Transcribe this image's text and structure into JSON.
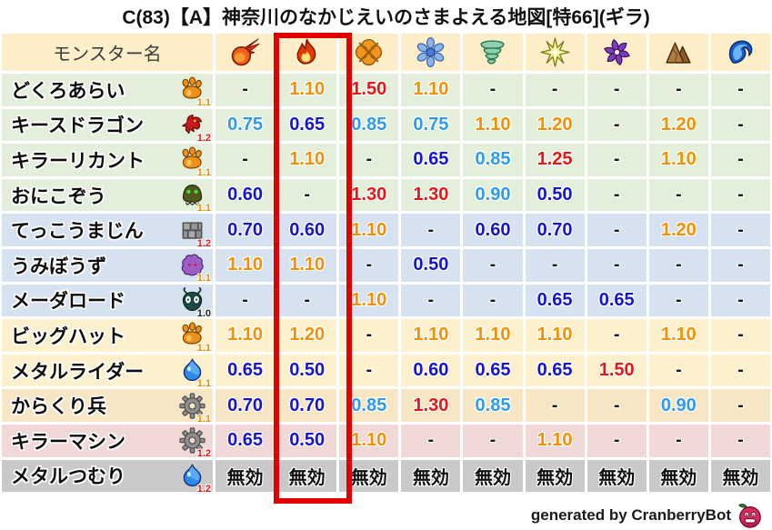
{
  "title": "C(83)【A】神奈川のなかじえいのさまよえる地図[特66](ギラ)",
  "footer": {
    "credit": "generated by CranberryBot",
    "bot_icon": "cranberry-icon"
  },
  "highlight": {
    "column_index": 1,
    "target_icon": "flame-icon"
  },
  "colors": {
    "highlight_box": "#e00000",
    "header_bg": "#fbeec9",
    "row_green": "#e3efdb",
    "row_blue": "#d7e2f0",
    "row_cream": "#fdf0cc",
    "row_tan": "#f6e6c4",
    "row_pink": "#f0d8d6",
    "row_gray": "#c9c9c9",
    "value_strong_resist": "#1515cf",
    "value_resist": "#2e9aec",
    "value_weak": "#f39000",
    "value_strong_weak": "#e81515",
    "badge_orange": "#f08a00",
    "badge_red": "#e81515",
    "badge_black": "#222222"
  },
  "chart_data": {
    "type": "table",
    "title": "C(83)【A】神奈川のなかじえいのさまよえる地図[特66](ギラ)",
    "monster_col_header": "モンスター名",
    "element_columns": [
      {
        "icon": "fireball-icon"
      },
      {
        "icon": "flame-icon"
      },
      {
        "icon": "explosion-icon"
      },
      {
        "icon": "snowflake-icon"
      },
      {
        "icon": "tornado-icon"
      },
      {
        "icon": "starburst-icon"
      },
      {
        "icon": "pinwheel-icon"
      },
      {
        "icon": "mountain-icon"
      },
      {
        "icon": "wave-icon"
      }
    ],
    "rows": [
      {
        "name": "どくろあらい",
        "icon": "paw-icon",
        "badge": "1.1",
        "row_color": "green",
        "values": [
          "-",
          "1.10",
          "1.50",
          "1.10",
          "-",
          "-",
          "-",
          "-",
          "-"
        ]
      },
      {
        "name": "キースドラゴン",
        "icon": "dragon-icon",
        "badge": "1.2",
        "row_color": "green",
        "values": [
          "0.75",
          "0.65",
          "0.85",
          "0.75",
          "1.10",
          "1.20",
          "-",
          "1.20",
          "-"
        ]
      },
      {
        "name": "キラーリカント",
        "icon": "paw-icon",
        "badge": "1.1",
        "row_color": "green",
        "values": [
          "-",
          "1.10",
          "-",
          "0.65",
          "0.85",
          "1.25",
          "-",
          "1.10",
          "-"
        ]
      },
      {
        "name": "おにこぞう",
        "icon": "helmet-icon",
        "badge": "1.1",
        "row_color": "green",
        "values": [
          "0.60",
          "-",
          "1.30",
          "1.30",
          "0.90",
          "0.50",
          "-",
          "-",
          "-"
        ]
      },
      {
        "name": "てっこうまじん",
        "icon": "bricks-icon",
        "badge": "1.2",
        "row_color": "blue",
        "values": [
          "0.70",
          "0.60",
          "1.10",
          "-",
          "0.60",
          "0.70",
          "-",
          "1.20",
          "-"
        ]
      },
      {
        "name": "うみぼうず",
        "icon": "blob-icon",
        "badge": "1.1",
        "row_color": "blue",
        "values": [
          "1.10",
          "1.10",
          "-",
          "0.50",
          "-",
          "-",
          "-",
          "-",
          "-"
        ]
      },
      {
        "name": "メーダロード",
        "icon": "bug-icon",
        "badge": "1.0",
        "row_color": "blue",
        "values": [
          "-",
          "-",
          "1.10",
          "-",
          "-",
          "0.65",
          "0.65",
          "-",
          "-"
        ]
      },
      {
        "name": "ビッグハット",
        "icon": "paw-icon",
        "badge": "1.1",
        "row_color": "cream",
        "values": [
          "1.10",
          "1.20",
          "-",
          "1.10",
          "1.10",
          "1.10",
          "-",
          "1.10",
          "-"
        ]
      },
      {
        "name": "メタルライダー",
        "icon": "slime-icon",
        "badge": "1.1",
        "row_color": "cream",
        "values": [
          "0.65",
          "0.50",
          "-",
          "0.60",
          "0.65",
          "0.65",
          "1.50",
          "-",
          "-"
        ]
      },
      {
        "name": "からくり兵",
        "icon": "gear-icon",
        "badge": "1.1",
        "row_color": "tan",
        "values": [
          "0.70",
          "0.70",
          "0.85",
          "1.30",
          "0.85",
          "-",
          "-",
          "0.90",
          "-"
        ]
      },
      {
        "name": "キラーマシン",
        "icon": "gear-icon",
        "badge": "1.2",
        "row_color": "pink",
        "values": [
          "0.65",
          "0.50",
          "1.10",
          "-",
          "-",
          "1.10",
          "-",
          "-",
          "-"
        ]
      },
      {
        "name": "メタルつむり",
        "icon": "slime-icon",
        "badge": "1.2",
        "row_color": "gray",
        "values": [
          "無効",
          "無効",
          "無効",
          "無効",
          "無効",
          "無効",
          "無効",
          "無効",
          "無効"
        ]
      }
    ]
  }
}
